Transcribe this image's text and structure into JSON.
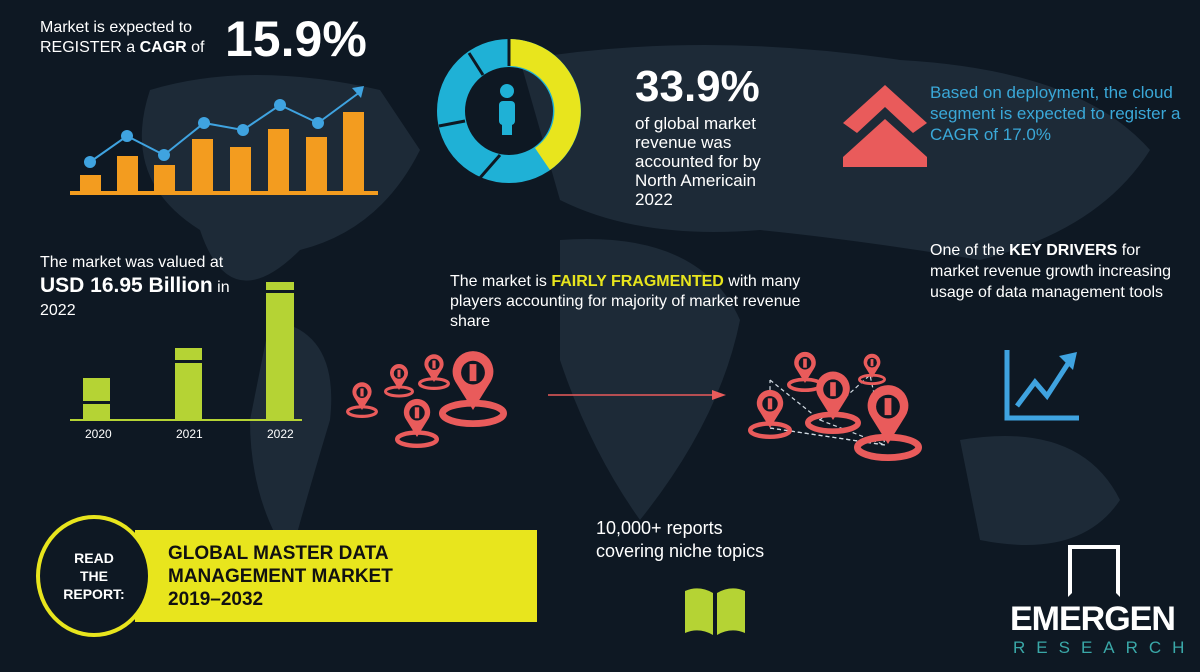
{
  "colors": {
    "background": "#0e1823",
    "orange": "#f39c1f",
    "blue": "#3fa3e0",
    "yellow": "#e8e51d",
    "cyan": "#1fb1d6",
    "red": "#e95b5b",
    "green": "#b5d334",
    "teal": "#3aa8d8"
  },
  "cagr": {
    "line1": "Market is expected to",
    "line2_pre": "REGISTER a ",
    "line2_bold": "CAGR",
    "line2_post": " of",
    "value": "15.9%"
  },
  "north_america": {
    "value": "33.9%",
    "lines": [
      "of global market",
      "revenue was",
      "accounted for by",
      "North Americain",
      "2022"
    ],
    "share_percent": 33.9
  },
  "cloud": {
    "text": "Based on deployment, the cloud segment is expected to register a CAGR of  17.0%"
  },
  "valuation": {
    "line1": "The market was valued at",
    "value": "USD 16.95 Billion",
    "in": " in",
    "year": "2022",
    "years": [
      "2020",
      "2021",
      "2022"
    ]
  },
  "fragmented": {
    "pre": "The market is ",
    "bold": "FAIRLY FRAGMENTED",
    "post": " with many players accounting for majority of market revenue share"
  },
  "drivers": {
    "pre": "One of the ",
    "bold": "KEY DRIVERS",
    "post": " for market revenue growth increasing usage of data management tools"
  },
  "reports": {
    "line1": "10,000+ reports",
    "line2": "covering niche topics"
  },
  "banner": {
    "read": "READ",
    "the": "THE",
    "report": "REPORT:",
    "title1": "GLOBAL MASTER DATA",
    "title2": "MANAGEMENT MARKET",
    "years": "2019–2032"
  },
  "logo": {
    "name": "EMERGEN",
    "sub": "RESEARCH"
  },
  "icons": [
    "bar-chart-icon",
    "donut-icon",
    "person-icon",
    "chevron-up-icon",
    "location-pin-icon",
    "arrow-right-icon",
    "trend-up-icon",
    "book-icon"
  ]
}
